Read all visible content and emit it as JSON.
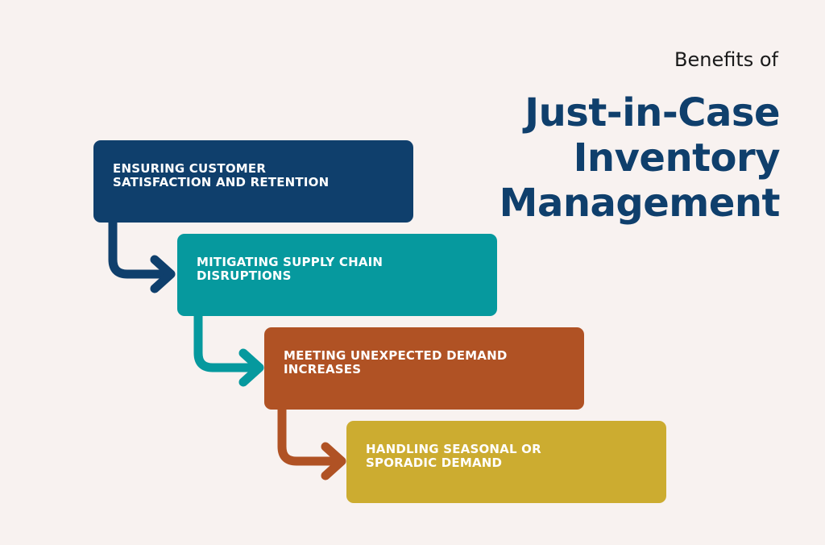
{
  "header": {
    "subtitle": "Benefits of",
    "title_lines": [
      "Just-in-Case",
      "Inventory",
      "Management"
    ]
  },
  "steps": [
    {
      "label": "ENSURING CUSTOMER SATISFACTION AND RETENTION",
      "color": "#0f3f6c"
    },
    {
      "label": "MITIGATING SUPPLY CHAIN DISRUPTIONS",
      "color": "#06999e"
    },
    {
      "label": "MEETING UNEXPECTED DEMAND INCREASES",
      "color": "#b05224"
    },
    {
      "label": "HANDLING SEASONAL OR SPORADIC DEMAND",
      "color": "#ccac30"
    }
  ],
  "colors": {
    "background": "#f8f2f0",
    "title": "#0f3f6c"
  }
}
